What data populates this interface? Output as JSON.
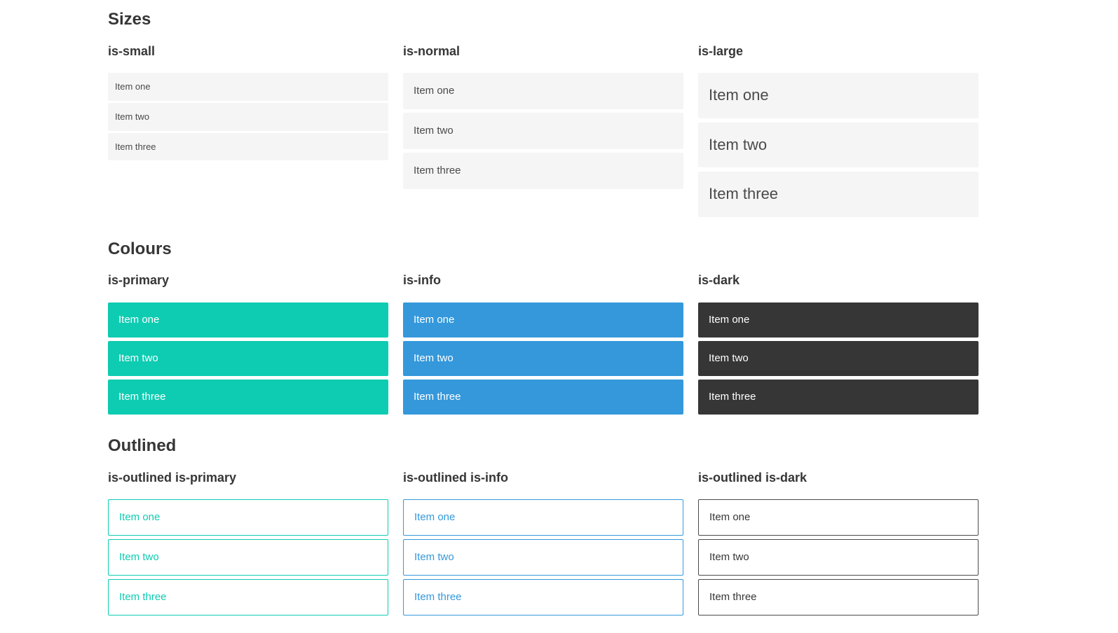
{
  "sections": [
    {
      "title": "Sizes",
      "groups": [
        {
          "label": "is-small",
          "items": [
            "Item one",
            "Item two",
            "Item three"
          ]
        },
        {
          "label": "is-normal",
          "items": [
            "Item one",
            "Item two",
            "Item three"
          ]
        },
        {
          "label": "is-large",
          "items": [
            "Item one",
            "Item two",
            "Item three"
          ]
        }
      ]
    },
    {
      "title": "Colours",
      "groups": [
        {
          "label": "is-primary",
          "items": [
            "Item one",
            "Item two",
            "Item three"
          ]
        },
        {
          "label": "is-info",
          "items": [
            "Item one",
            "Item two",
            "Item three"
          ]
        },
        {
          "label": "is-dark",
          "items": [
            "Item one",
            "Item two",
            "Item three"
          ]
        }
      ]
    },
    {
      "title": "Outlined",
      "groups": [
        {
          "label": "is-outlined is-primary",
          "items": [
            "Item one",
            "Item two",
            "Item three"
          ]
        },
        {
          "label": "is-outlined is-info",
          "items": [
            "Item one",
            "Item two",
            "Item three"
          ]
        },
        {
          "label": "is-outlined is-dark",
          "items": [
            "Item one",
            "Item two",
            "Item three"
          ]
        }
      ]
    }
  ],
  "colors": {
    "primary": "#0dccb1",
    "info": "#3498db",
    "dark": "#363636",
    "light": "#f5f5f5",
    "text_muted": "#4a4a4a",
    "heading": "#363636",
    "outline_dark_border": "#4a4a4a"
  }
}
